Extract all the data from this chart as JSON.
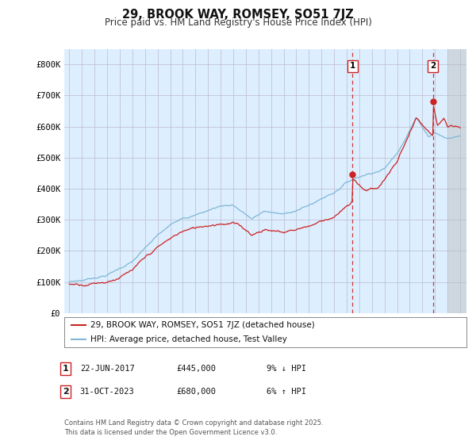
{
  "title": "29, BROOK WAY, ROMSEY, SO51 7JZ",
  "subtitle": "Price paid vs. HM Land Registry's House Price Index (HPI)",
  "ylim": [
    0,
    850000
  ],
  "yticks": [
    0,
    100000,
    200000,
    300000,
    400000,
    500000,
    600000,
    700000,
    800000
  ],
  "ytick_labels": [
    "£0",
    "£100K",
    "£200K",
    "£300K",
    "£400K",
    "£500K",
    "£600K",
    "£700K",
    "£800K"
  ],
  "hpi_color": "#7eb8d4",
  "price_color": "#cc2222",
  "dashed_color": "#cc2222",
  "marker1_x": 2017.47,
  "marker1_y": 445000,
  "marker2_x": 2023.83,
  "marker2_y": 680000,
  "legend_line1": "29, BROOK WAY, ROMSEY, SO51 7JZ (detached house)",
  "legend_line2": "HPI: Average price, detached house, Test Valley",
  "table_row1": [
    "1",
    "22-JUN-2017",
    "£445,000",
    "9% ↓ HPI"
  ],
  "table_row2": [
    "2",
    "31-OCT-2023",
    "£680,000",
    "6% ↑ HPI"
  ],
  "footer": "Contains HM Land Registry data © Crown copyright and database right 2025.\nThis data is licensed under the Open Government Licence v3.0.",
  "xlim_left": 1994.6,
  "xlim_right": 2026.5,
  "forecast_start": 2025.0,
  "chart_bg": "#ddeeff",
  "grid_color": "#bbbbcc"
}
